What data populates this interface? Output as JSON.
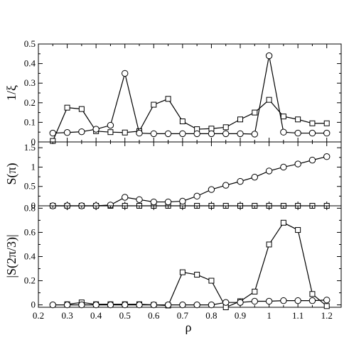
{
  "chart_data": [
    {
      "type": "line",
      "panel": "top",
      "ylabel": "1/ξ",
      "xlim": [
        0.2,
        1.25
      ],
      "ylim": [
        0,
        0.5
      ],
      "yticks": [
        "0",
        "0.1",
        "0.2",
        "0.3",
        "0.4",
        "0.5"
      ],
      "grid": false,
      "series": [
        {
          "marker": "square",
          "x": [
            0.25,
            0.3,
            0.35,
            0.4,
            0.45,
            0.5,
            0.55,
            0.6,
            0.65,
            0.7,
            0.75,
            0.8,
            0.85,
            0.9,
            0.95,
            1.0,
            1.05,
            1.1,
            1.15,
            1.2
          ],
          "y": [
            0.005,
            0.175,
            0.168,
            0.055,
            0.05,
            0.048,
            0.055,
            0.19,
            0.22,
            0.105,
            0.065,
            0.068,
            0.075,
            0.115,
            0.15,
            0.215,
            0.13,
            0.115,
            0.095,
            0.095
          ]
        },
        {
          "marker": "circle",
          "x": [
            0.25,
            0.3,
            0.35,
            0.4,
            0.45,
            0.5,
            0.55,
            0.6,
            0.65,
            0.7,
            0.75,
            0.8,
            0.85,
            0.9,
            0.95,
            1.0,
            1.05,
            1.1,
            1.15,
            1.2
          ],
          "y": [
            0.045,
            0.048,
            0.052,
            0.065,
            0.085,
            0.35,
            0.045,
            0.042,
            0.042,
            0.042,
            0.042,
            0.042,
            0.042,
            0.042,
            0.04,
            0.44,
            0.05,
            0.045,
            0.045,
            0.045
          ]
        }
      ]
    },
    {
      "type": "line",
      "panel": "middle",
      "ylabel": "S(π)",
      "xlim": [
        0.2,
        1.25
      ],
      "ylim": [
        0,
        1.65
      ],
      "yticks": [
        "0",
        "0.5",
        "1",
        "1.5"
      ],
      "grid": false,
      "series": [
        {
          "marker": "square",
          "x": [
            0.25,
            0.3,
            0.35,
            0.4,
            0.45,
            0.5,
            0.55,
            0.6,
            0.65,
            0.7,
            0.75,
            0.8,
            0.85,
            0.9,
            0.95,
            1.0,
            1.05,
            1.1,
            1.15,
            1.2
          ],
          "y": [
            0.0,
            0.0,
            0.0,
            0.0,
            0.0,
            0.0,
            0.0,
            0.0,
            0.0,
            0.0,
            0.0,
            0.0,
            0.0,
            0.0,
            0.0,
            0.0,
            0.0,
            0.0,
            0.0,
            0.0
          ]
        },
        {
          "marker": "circle",
          "x": [
            0.25,
            0.3,
            0.35,
            0.4,
            0.45,
            0.5,
            0.55,
            0.6,
            0.65,
            0.7,
            0.75,
            0.8,
            0.85,
            0.9,
            0.95,
            1.0,
            1.05,
            1.1,
            1.15,
            1.2
          ],
          "y": [
            0.0,
            0.0,
            0.0,
            0.0,
            0.02,
            0.22,
            0.16,
            0.1,
            0.1,
            0.12,
            0.25,
            0.42,
            0.53,
            0.63,
            0.74,
            0.9,
            1.0,
            1.08,
            1.18,
            1.27
          ]
        }
      ]
    },
    {
      "type": "line",
      "panel": "bottom",
      "ylabel": "|S(2π/3)|",
      "xlabel": "ρ",
      "xlim": [
        0.2,
        1.25
      ],
      "ylim": [
        -0.02,
        0.82
      ],
      "xticks": [
        "0.2",
        "0.3",
        "0.4",
        "0.5",
        "0.6",
        "0.7",
        "0.8",
        "0.9",
        "1",
        "1.1",
        "1.2"
      ],
      "yticks": [
        "0",
        "0.2",
        "0.4",
        "0.6",
        "0.8"
      ],
      "grid": false,
      "series": [
        {
          "marker": "square",
          "x": [
            0.3,
            0.35,
            0.4,
            0.45,
            0.5,
            0.55,
            0.6,
            0.65,
            0.7,
            0.75,
            0.8,
            0.85,
            0.9,
            0.95,
            1.0,
            1.05,
            1.1,
            1.15,
            1.2
          ],
          "y": [
            0.005,
            0.02,
            0.005,
            0.005,
            0.005,
            0.005,
            0.0,
            -0.005,
            0.27,
            0.25,
            0.2,
            -0.02,
            0.03,
            0.11,
            0.5,
            0.68,
            0.62,
            0.09,
            -0.01
          ]
        },
        {
          "marker": "circle",
          "x": [
            0.25,
            0.3,
            0.35,
            0.4,
            0.45,
            0.5,
            0.55,
            0.6,
            0.65,
            0.7,
            0.75,
            0.8,
            0.85,
            0.9,
            0.95,
            1.0,
            1.05,
            1.1,
            1.15,
            1.2
          ],
          "y": [
            0.0,
            0.0,
            0.0,
            0.0,
            0.0,
            0.0,
            0.0,
            0.0,
            0.0,
            0.0,
            0.0,
            0.0,
            0.02,
            0.02,
            0.03,
            0.03,
            0.035,
            0.035,
            0.035,
            0.04
          ]
        }
      ]
    }
  ]
}
